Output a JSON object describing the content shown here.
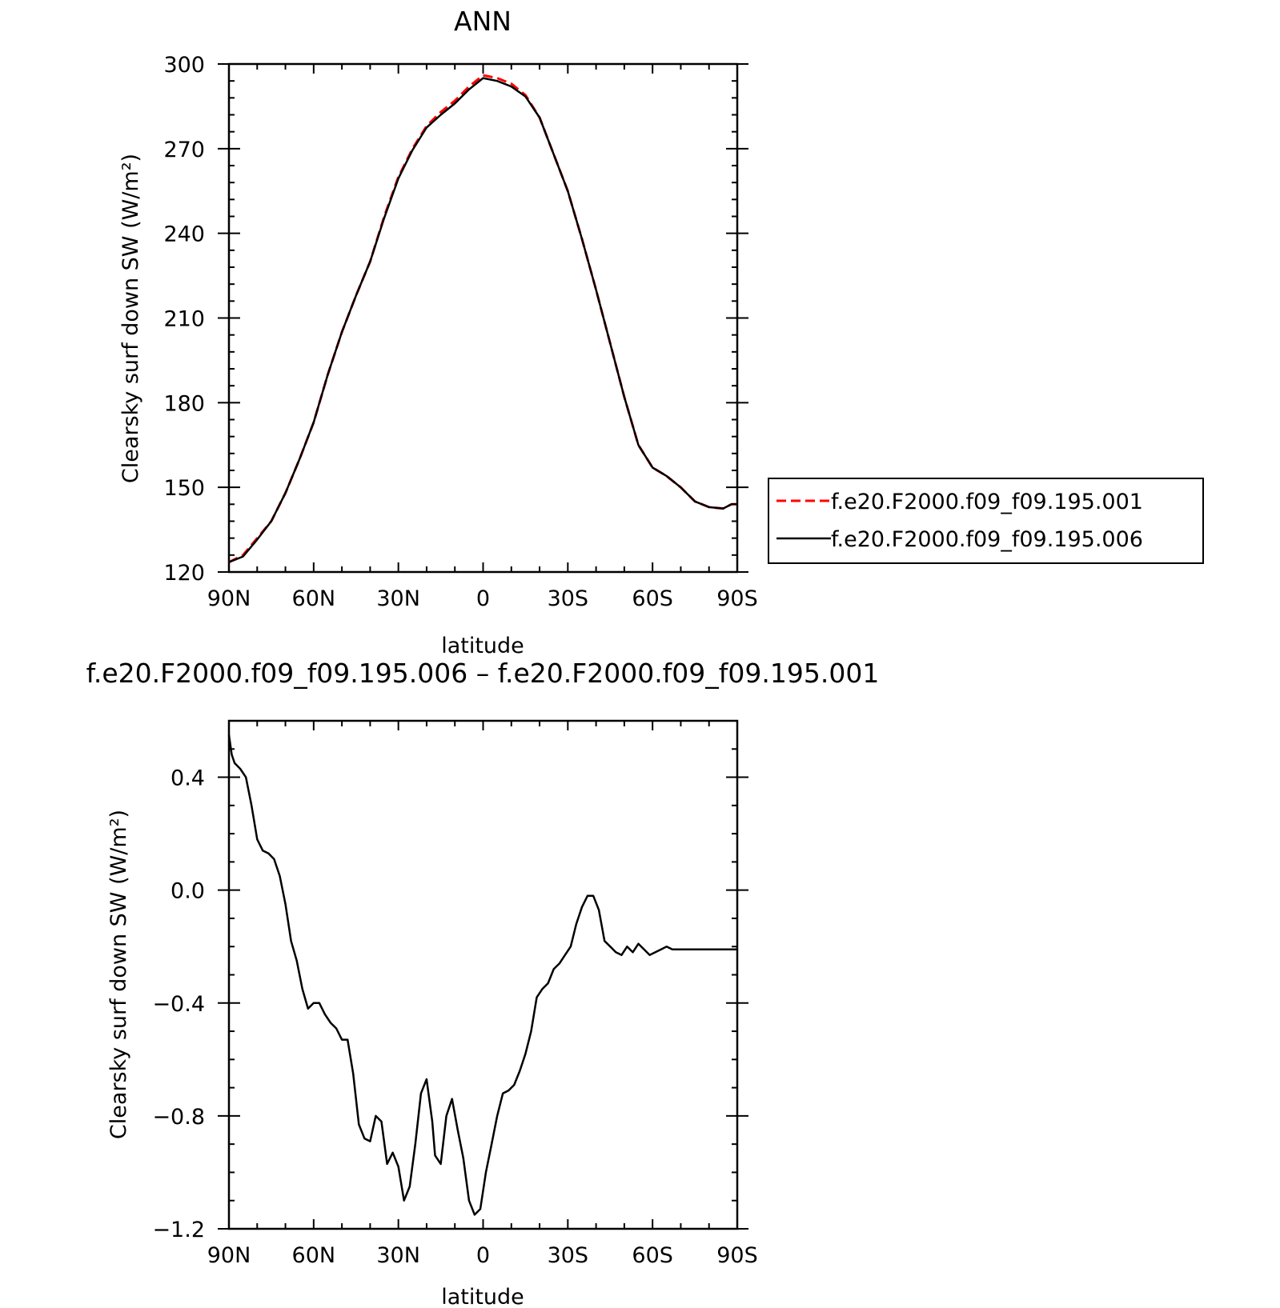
{
  "chart_data": [
    {
      "type": "line",
      "title": "ANN",
      "xlabel": "latitude",
      "ylabel": "Clearsky surf down SW (W/m²)",
      "xlim": [
        90,
        -90
      ],
      "ylim": [
        120,
        300
      ],
      "x_ticks": [
        90,
        60,
        30,
        0,
        -30,
        -60,
        -90
      ],
      "x_tick_labels": [
        "90N",
        "60N",
        "30N",
        "0",
        "30S",
        "60S",
        "90S"
      ],
      "y_ticks": [
        120,
        150,
        180,
        210,
        240,
        270,
        300
      ],
      "y_tick_labels": [
        "120",
        "150",
        "180",
        "210",
        "240",
        "270",
        "300"
      ],
      "legend_position": "right",
      "series": [
        {
          "name": "f.e20.F2000.f09_f09.195.001",
          "color": "#ff0000",
          "dash": "dashed",
          "x": [
            90,
            85,
            80,
            75,
            70,
            65,
            60,
            55,
            50,
            45,
            40,
            35,
            30,
            25,
            20,
            15,
            10,
            5,
            0,
            -5,
            -10,
            -15,
            -20,
            -25,
            -30,
            -35,
            -40,
            -45,
            -50,
            -55,
            -60,
            -65,
            -70,
            -75,
            -80,
            -85,
            -88,
            -90
          ],
          "values": [
            123.5,
            126,
            132,
            138,
            148,
            160,
            173,
            190,
            205,
            218,
            230,
            246,
            260,
            270,
            278,
            283,
            287,
            292,
            296,
            295,
            293,
            289,
            281,
            268,
            255,
            238,
            220,
            201,
            182,
            165,
            157,
            154,
            150,
            145,
            143,
            142.5,
            144,
            144
          ]
        },
        {
          "name": "f.e20.F2000.f09_f09.195.006",
          "color": "#000000",
          "dash": "solid",
          "x": [
            90,
            85,
            80,
            75,
            70,
            65,
            60,
            55,
            50,
            45,
            40,
            35,
            30,
            25,
            20,
            15,
            10,
            5,
            0,
            -5,
            -10,
            -15,
            -20,
            -25,
            -30,
            -35,
            -40,
            -45,
            -50,
            -55,
            -60,
            -65,
            -70,
            -75,
            -80,
            -85,
            -88,
            -90
          ],
          "values": [
            123.5,
            125.5,
            131.5,
            138,
            148,
            160,
            173,
            190,
            205,
            218,
            230,
            245.5,
            259.5,
            269.5,
            277.5,
            282,
            286,
            291,
            295,
            294,
            292,
            288.5,
            281,
            268,
            255,
            238,
            220,
            201,
            182,
            165,
            157,
            154,
            150,
            145,
            143,
            142.5,
            144,
            144
          ]
        }
      ]
    },
    {
      "type": "line",
      "title": "f.e20.F2000.f09_f09.195.006 – f.e20.F2000.f09_f09.195.001",
      "xlabel": "latitude",
      "ylabel": "Clearsky surf down SW (W/m²)",
      "xlim": [
        90,
        -90
      ],
      "ylim": [
        -1.2,
        0.6
      ],
      "x_ticks": [
        90,
        60,
        30,
        0,
        -30,
        -60,
        -90
      ],
      "x_tick_labels": [
        "90N",
        "60N",
        "30N",
        "0",
        "30S",
        "60S",
        "90S"
      ],
      "y_ticks": [
        0.4,
        0.0,
        -0.4,
        -0.8,
        -1.2
      ],
      "y_tick_labels": [
        "0.4",
        "0.0",
        "−0.4",
        "−0.8",
        "−1.2"
      ],
      "series": [
        {
          "name": "",
          "color": "#000000",
          "dash": "solid",
          "x": [
            90,
            89,
            88,
            86,
            84,
            82,
            80,
            78,
            76,
            74,
            72,
            70,
            68,
            66,
            64,
            62,
            60,
            58,
            56,
            54,
            52,
            50,
            48,
            46,
            44,
            42,
            40,
            38,
            36,
            34,
            32,
            30,
            28,
            26,
            24,
            22,
            20,
            18,
            17,
            15,
            13,
            11,
            9,
            7,
            5,
            3,
            1,
            -1,
            -3,
            -5,
            -7,
            -9,
            -11,
            -13,
            -15,
            -17,
            -19,
            -21,
            -23,
            -25,
            -27,
            -29,
            -31,
            -33,
            -35,
            -37,
            -39,
            -41,
            -43,
            -45,
            -47,
            -49,
            -51,
            -53,
            -55,
            -57,
            -59,
            -61,
            -63,
            -65,
            -67,
            -69,
            -71,
            -73,
            -75,
            -77,
            -79,
            -81,
            -83,
            -85,
            -87,
            -89,
            -90
          ],
          "values": [
            0.55,
            0.48,
            0.45,
            0.43,
            0.4,
            0.3,
            0.18,
            0.14,
            0.13,
            0.11,
            0.05,
            -0.05,
            -0.18,
            -0.25,
            -0.35,
            -0.42,
            -0.4,
            -0.4,
            -0.44,
            -0.47,
            -0.49,
            -0.53,
            -0.53,
            -0.65,
            -0.83,
            -0.88,
            -0.89,
            -0.8,
            -0.82,
            -0.97,
            -0.93,
            -0.98,
            -1.1,
            -1.05,
            -0.9,
            -0.72,
            -0.67,
            -0.82,
            -0.94,
            -0.97,
            -0.8,
            -0.74,
            -0.85,
            -0.95,
            -1.1,
            -1.15,
            -1.13,
            -1.0,
            -0.9,
            -0.8,
            -0.72,
            -0.71,
            -0.69,
            -0.64,
            -0.58,
            -0.5,
            -0.38,
            -0.35,
            -0.33,
            -0.28,
            -0.26,
            -0.23,
            -0.2,
            -0.12,
            -0.06,
            -0.02,
            -0.02,
            -0.07,
            -0.18,
            -0.2,
            -0.22,
            -0.23,
            -0.2,
            -0.22,
            -0.19,
            -0.21,
            -0.23,
            -0.22,
            -0.21,
            -0.2,
            -0.21,
            -0.21,
            -0.21,
            -0.21,
            -0.21,
            -0.21,
            -0.21,
            -0.21,
            -0.21,
            -0.21,
            -0.21,
            -0.21,
            -0.21
          ]
        }
      ]
    }
  ]
}
